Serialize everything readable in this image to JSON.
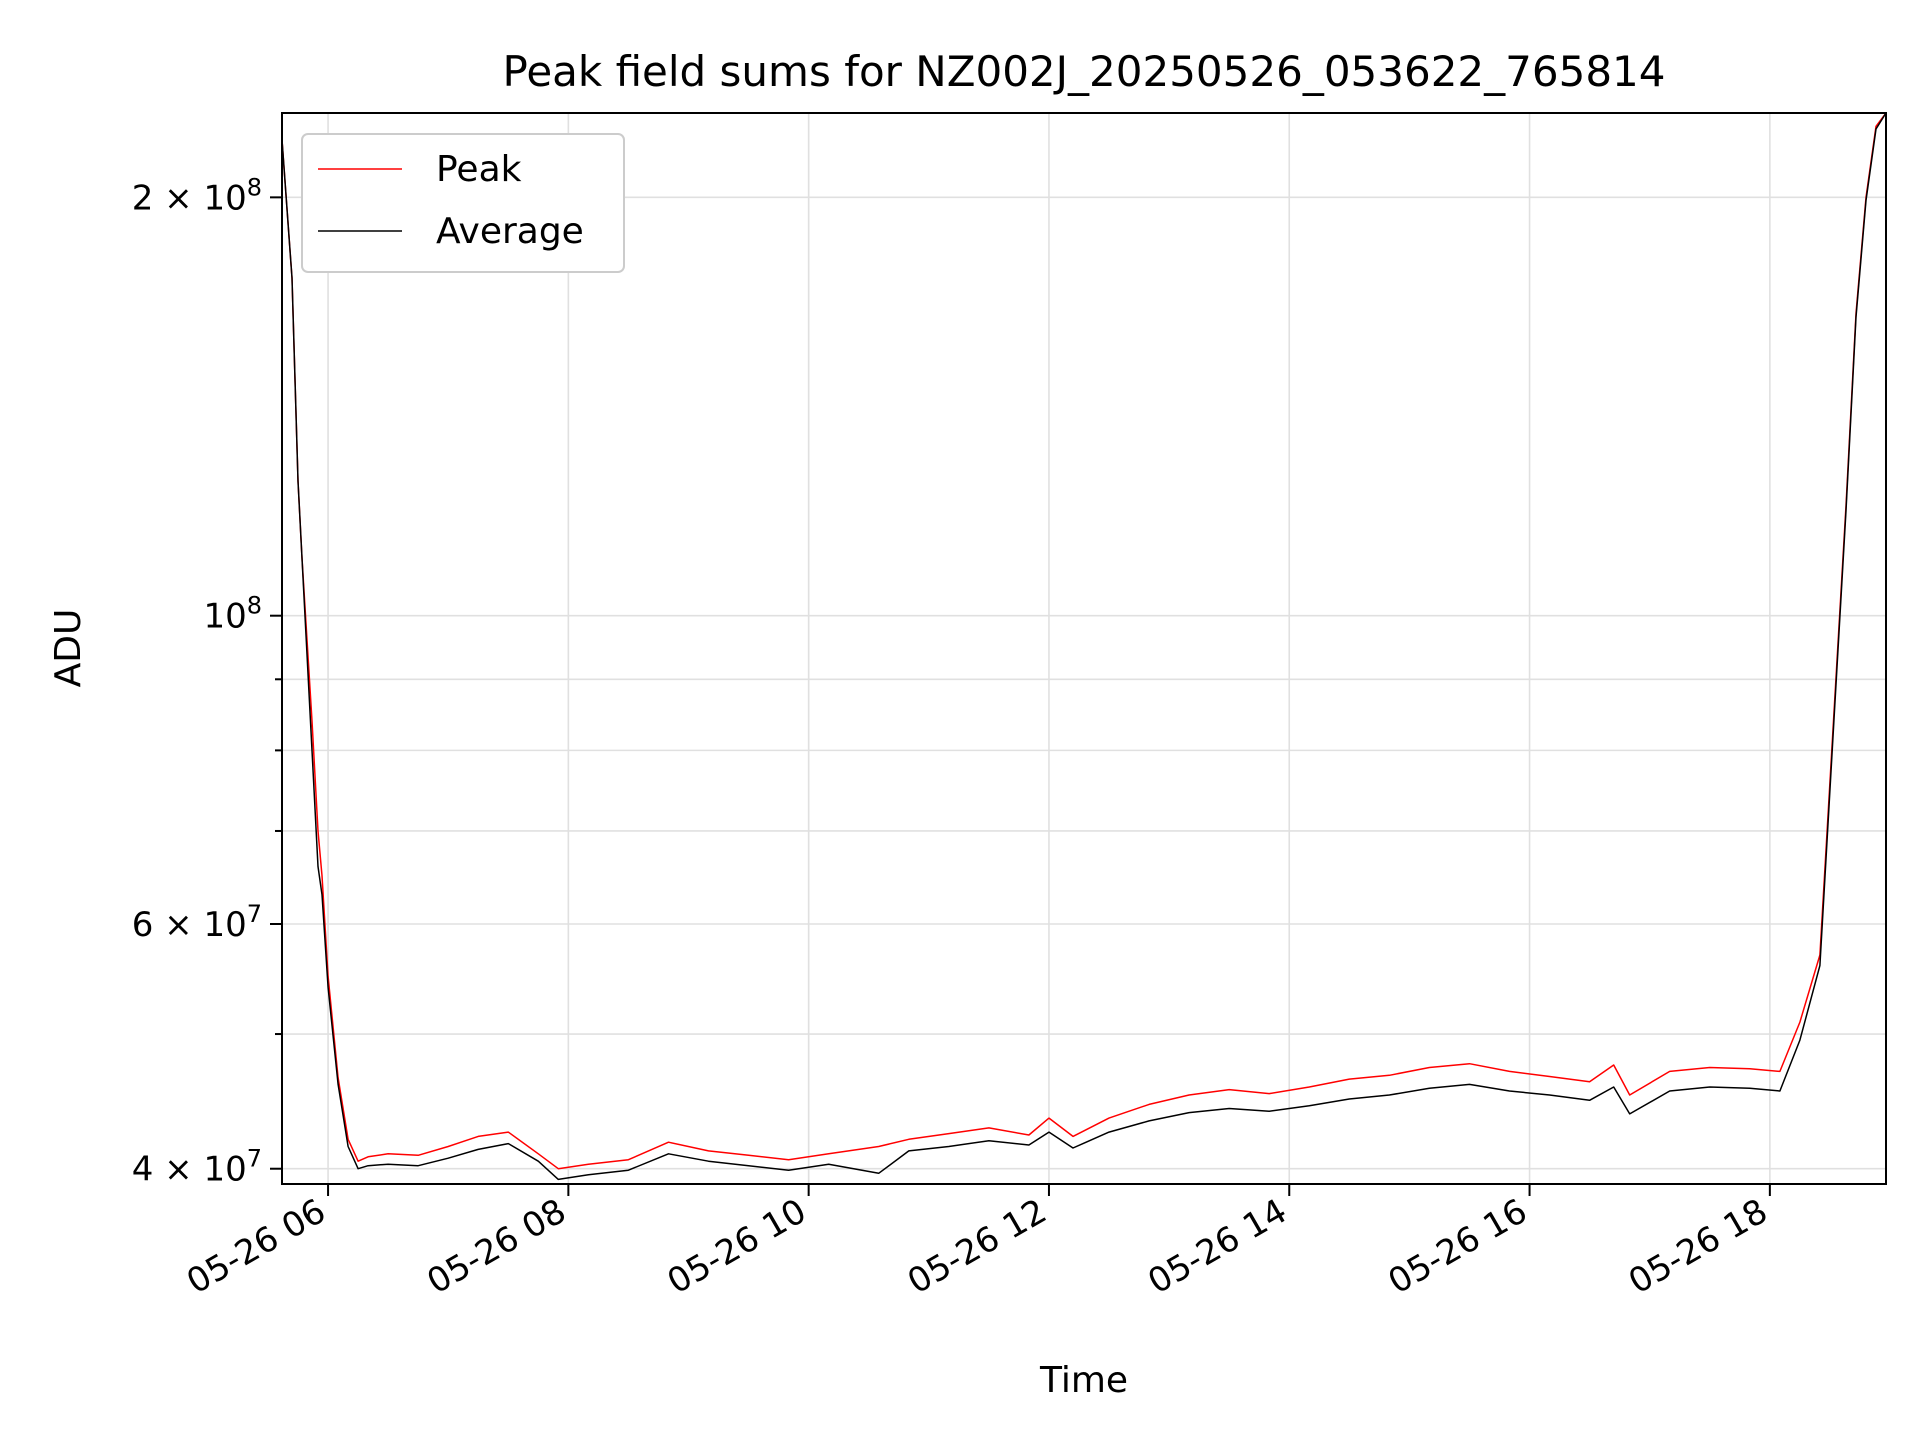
{
  "chart_data": {
    "type": "line",
    "title": "Peak field sums for NZ002J_20250526_053622_765814",
    "xlabel": "Time",
    "ylabel": "ADU",
    "y_scale": "log",
    "ylim": [
      39000000,
      230000000
    ],
    "xlim": [
      "2025-05-26 05:37",
      "2025-05-26 18:58"
    ],
    "x_tick_labels": [
      "05-26 06",
      "05-26 08",
      "05-26 10",
      "05-26 12",
      "05-26 14",
      "05-26 16",
      "05-26 18"
    ],
    "x_ticks": [
      "2025-05-26 06:00",
      "2025-05-26 08:00",
      "2025-05-26 10:00",
      "2025-05-26 12:00",
      "2025-05-26 14:00",
      "2025-05-26 16:00",
      "2025-05-26 18:00"
    ],
    "y_major_ticks": [
      {
        "value": 40000000,
        "mantissa": "4",
        "exp": "7"
      },
      {
        "value": 60000000,
        "mantissa": "6",
        "exp": "7"
      },
      {
        "value": 100000000,
        "mantissa": "",
        "exp": "8"
      },
      {
        "value": 200000000,
        "mantissa": "2",
        "exp": "8"
      }
    ],
    "y_minor_grid": [
      50000000,
      70000000,
      80000000,
      90000000
    ],
    "grid": true,
    "legend_position": "upper-left",
    "series": [
      {
        "name": "Peak",
        "color": "#ff0000",
        "x": [
          "2025-05-26 05:37",
          "2025-05-26 05:42",
          "2025-05-26 05:45",
          "2025-05-26 05:47",
          "2025-05-26 05:52",
          "2025-05-26 05:55",
          "2025-05-26 05:57",
          "2025-05-26 06:00",
          "2025-05-26 06:05",
          "2025-05-26 06:10",
          "2025-05-26 06:15",
          "2025-05-26 06:20",
          "2025-05-26 06:30",
          "2025-05-26 06:45",
          "2025-05-26 07:00",
          "2025-05-26 07:15",
          "2025-05-26 07:30",
          "2025-05-26 07:45",
          "2025-05-26 07:55",
          "2025-05-26 08:10",
          "2025-05-26 08:30",
          "2025-05-26 08:50",
          "2025-05-26 09:10",
          "2025-05-26 09:30",
          "2025-05-26 09:50",
          "2025-05-26 10:10",
          "2025-05-26 10:35",
          "2025-05-26 10:50",
          "2025-05-26 11:10",
          "2025-05-26 11:30",
          "2025-05-26 11:50",
          "2025-05-26 12:00",
          "2025-05-26 12:12",
          "2025-05-26 12:30",
          "2025-05-26 12:50",
          "2025-05-26 13:10",
          "2025-05-26 13:30",
          "2025-05-26 13:50",
          "2025-05-26 14:10",
          "2025-05-26 14:30",
          "2025-05-26 14:50",
          "2025-05-26 15:10",
          "2025-05-26 15:30",
          "2025-05-26 15:50",
          "2025-05-26 16:10",
          "2025-05-26 16:30",
          "2025-05-26 16:42",
          "2025-05-26 16:50",
          "2025-05-26 17:10",
          "2025-05-26 17:30",
          "2025-05-26 17:50",
          "2025-05-26 18:05",
          "2025-05-26 18:15",
          "2025-05-26 18:25",
          "2025-05-26 18:32",
          "2025-05-26 18:38",
          "2025-05-26 18:43",
          "2025-05-26 18:48",
          "2025-05-26 18:53",
          "2025-05-26 18:58"
        ],
        "values": [
          220000000,
          175000000,
          125000000,
          110000000,
          84000000,
          70000000,
          65000000,
          55000000,
          46500000,
          42000000,
          40500000,
          40800000,
          41000000,
          40900000,
          41500000,
          42200000,
          42500000,
          41000000,
          40000000,
          40300000,
          40600000,
          41800000,
          41200000,
          40900000,
          40600000,
          41000000,
          41500000,
          42000000,
          42400000,
          42800000,
          42300000,
          43500000,
          42200000,
          43500000,
          44500000,
          45200000,
          45600000,
          45300000,
          45800000,
          46400000,
          46700000,
          47300000,
          47600000,
          47000000,
          46600000,
          46200000,
          47500000,
          45200000,
          47000000,
          47300000,
          47200000,
          47000000,
          51000000,
          57000000,
          85000000,
          120000000,
          165000000,
          200000000,
          225000000,
          230000000
        ]
      },
      {
        "name": "Average",
        "color": "#000000",
        "x": [
          "2025-05-26 05:37",
          "2025-05-26 05:42",
          "2025-05-26 05:45",
          "2025-05-26 05:47",
          "2025-05-26 05:52",
          "2025-05-26 05:55",
          "2025-05-26 05:57",
          "2025-05-26 06:00",
          "2025-05-26 06:05",
          "2025-05-26 06:10",
          "2025-05-26 06:15",
          "2025-05-26 06:20",
          "2025-05-26 06:30",
          "2025-05-26 06:45",
          "2025-05-26 07:00",
          "2025-05-26 07:15",
          "2025-05-26 07:30",
          "2025-05-26 07:45",
          "2025-05-26 07:55",
          "2025-05-26 08:10",
          "2025-05-26 08:30",
          "2025-05-26 08:50",
          "2025-05-26 09:10",
          "2025-05-26 09:30",
          "2025-05-26 09:50",
          "2025-05-26 10:10",
          "2025-05-26 10:35",
          "2025-05-26 10:50",
          "2025-05-26 11:10",
          "2025-05-26 11:30",
          "2025-05-26 11:50",
          "2025-05-26 12:00",
          "2025-05-26 12:12",
          "2025-05-26 12:30",
          "2025-05-26 12:50",
          "2025-05-26 13:10",
          "2025-05-26 13:30",
          "2025-05-26 13:50",
          "2025-05-26 14:10",
          "2025-05-26 14:30",
          "2025-05-26 14:50",
          "2025-05-26 15:10",
          "2025-05-26 15:30",
          "2025-05-26 15:50",
          "2025-05-26 16:10",
          "2025-05-26 16:30",
          "2025-05-26 16:42",
          "2025-05-26 16:50",
          "2025-05-26 17:10",
          "2025-05-26 17:30",
          "2025-05-26 17:50",
          "2025-05-26 18:05",
          "2025-05-26 18:15",
          "2025-05-26 18:25",
          "2025-05-26 18:32",
          "2025-05-26 18:38",
          "2025-05-26 18:43",
          "2025-05-26 18:48",
          "2025-05-26 18:53",
          "2025-05-26 18:58"
        ],
        "values": [
          220000000,
          175000000,
          125000000,
          110000000,
          80000000,
          66000000,
          63000000,
          54000000,
          46000000,
          41500000,
          40000000,
          40200000,
          40300000,
          40200000,
          40700000,
          41300000,
          41700000,
          40500000,
          39300000,
          39600000,
          39900000,
          41000000,
          40500000,
          40200000,
          39900000,
          40300000,
          39700000,
          41200000,
          41500000,
          41900000,
          41600000,
          42500000,
          41400000,
          42500000,
          43300000,
          43900000,
          44200000,
          44000000,
          44400000,
          44900000,
          45200000,
          45700000,
          46000000,
          45500000,
          45200000,
          44800000,
          45800000,
          43800000,
          45500000,
          45800000,
          45700000,
          45500000,
          49500000,
          56000000,
          84000000,
          119000000,
          164000000,
          199000000,
          224000000,
          230000000
        ]
      }
    ]
  }
}
